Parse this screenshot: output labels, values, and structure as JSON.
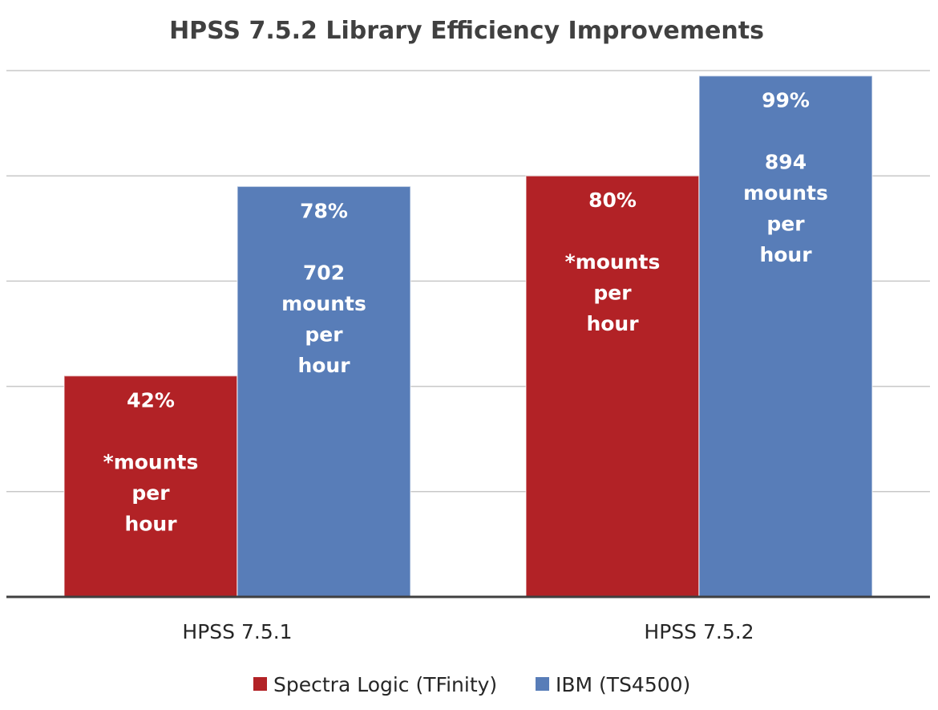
{
  "chart_data": {
    "type": "bar",
    "title": "HPSS 7.5.2 Library Efficiency Improvements",
    "categories": [
      "HPSS 7.5.1",
      "HPSS 7.5.2"
    ],
    "series": [
      {
        "name": "Spectra Logic (TFinity)",
        "color": "#b22226",
        "values": [
          42,
          80
        ],
        "labels": [
          [
            "42%",
            "",
            "*mounts",
            "per",
            "hour"
          ],
          [
            "80%",
            "",
            "*mounts",
            "per",
            "hour"
          ]
        ]
      },
      {
        "name": "IBM (TS4500)",
        "color": "#587db8",
        "values": [
          78,
          99
        ],
        "labels": [
          [
            "78%",
            "",
            "702",
            "mounts",
            "per",
            "hour"
          ],
          [
            "99%",
            "",
            "894",
            "mounts",
            "per",
            "hour"
          ]
        ]
      }
    ],
    "ylim": [
      0,
      100
    ],
    "grid": true,
    "legend": "bottom",
    "xlabel": "",
    "ylabel": ""
  }
}
